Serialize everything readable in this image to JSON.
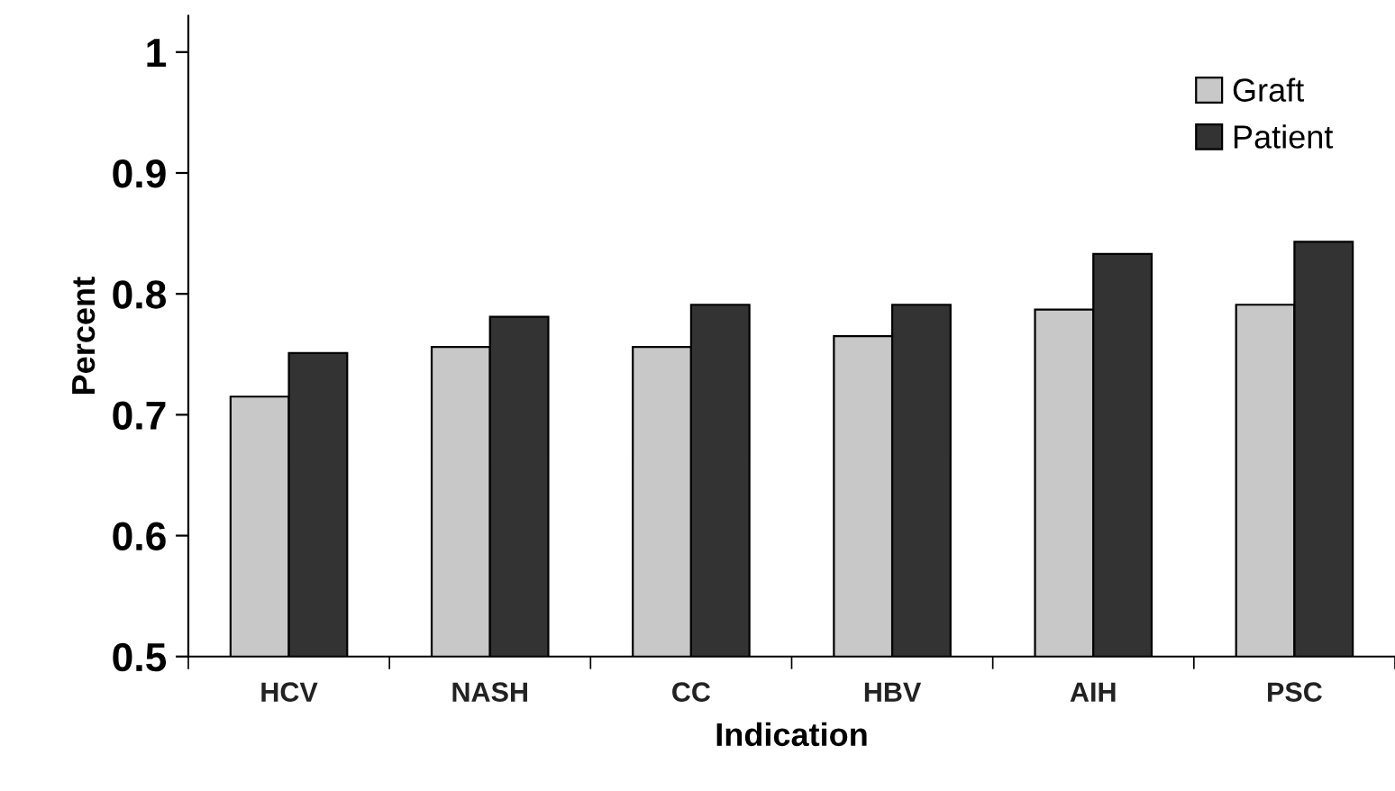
{
  "chart_data": {
    "type": "bar",
    "xlabel": "Indication",
    "ylabel": "Percent",
    "categories": [
      "HCV",
      "NASH",
      "CC",
      "HBV",
      "AIH",
      "PSC"
    ],
    "series": [
      {
        "name": "Graft",
        "color": "#c8c8c8",
        "values": [
          0.715,
          0.756,
          0.756,
          0.765,
          0.787,
          0.791
        ]
      },
      {
        "name": "Patient",
        "color": "#333333",
        "values": [
          0.751,
          0.781,
          0.791,
          0.791,
          0.833,
          0.843
        ]
      }
    ],
    "ylim": [
      0.5,
      1.03
    ],
    "yticks": [
      0.5,
      0.6,
      0.7,
      0.8,
      0.9,
      1
    ],
    "grid": false,
    "legend": "top right"
  }
}
